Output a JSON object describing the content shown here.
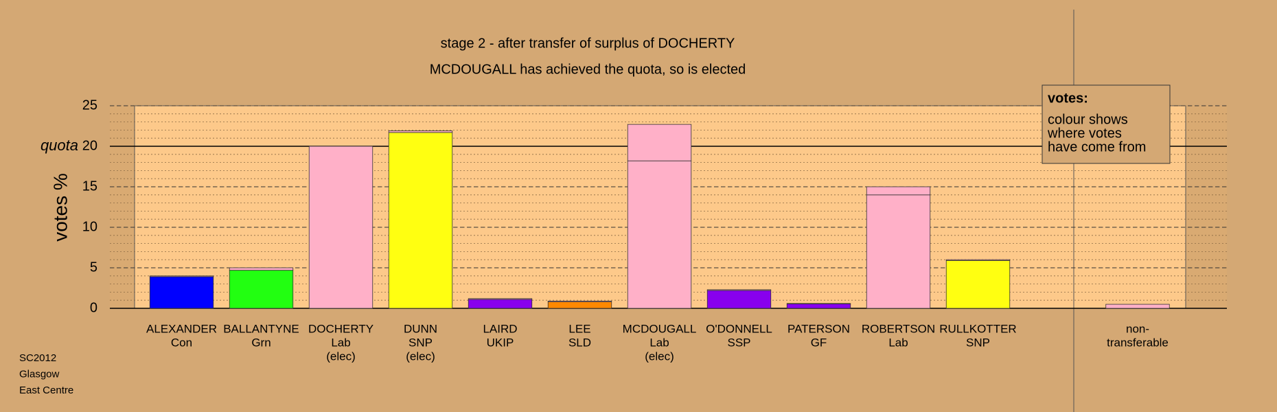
{
  "chart_data": {
    "type": "bar",
    "title": "stage 2 - after transfer of surplus of DOCHERTY",
    "subtitle": "MCDOUGALL has achieved the quota, so is elected",
    "y_label": "votes %",
    "categories": [
      [
        "ALEXANDER",
        "Con"
      ],
      [
        "BALLANTYNE",
        "Grn"
      ],
      [
        "DOCHERTY",
        "Lab",
        "(elec)"
      ],
      [
        "DUNN",
        "SNP",
        "(elec)"
      ],
      [
        "LAIRD",
        "UKIP"
      ],
      [
        "LEE",
        "SLD"
      ],
      [
        "MCDOUGALL",
        "Lab",
        "(elec)"
      ],
      [
        "O'DONNELL",
        "SSP"
      ],
      [
        "PATERSON",
        "GF"
      ],
      [
        "ROBERTSON",
        "Lab"
      ],
      [
        "RULLKOTTER",
        "SNP"
      ]
    ],
    "values": [
      3.9,
      4.7,
      20.0,
      21.7,
      1.1,
      0.8,
      18.2,
      2.2,
      0.55,
      14.0,
      5.9
    ],
    "colors": [
      "#0000ff",
      "#22ff11",
      "#ffb0c8",
      "#ffff11",
      "#8800ee",
      "#ff8800",
      "#ffb0c8",
      "#8800ee",
      "#8800ee",
      "#ffb0c8",
      "#ffff11"
    ],
    "transfer_values": [
      0.1,
      0.3,
      0,
      0.2,
      0.1,
      0.1,
      4.5,
      0.1,
      0.05,
      1.0,
      0.1
    ],
    "transfer_color": "#ffb0c8",
    "nontransferable": {
      "label": [
        "non-",
        "transferable"
      ],
      "value": 0.5,
      "color": "#ffb0c8"
    },
    "quota": {
      "value": 20,
      "label": "quota"
    },
    "ylim": [
      0,
      25
    ],
    "yticks": [
      0,
      5,
      10,
      15,
      20,
      25
    ],
    "grid": true,
    "legend": {
      "title": "votes:",
      "lines": [
        "colour shows",
        "where votes",
        "have come from"
      ]
    },
    "footnote": [
      "SC2012",
      "Glasgow",
      "East Centre"
    ]
  }
}
